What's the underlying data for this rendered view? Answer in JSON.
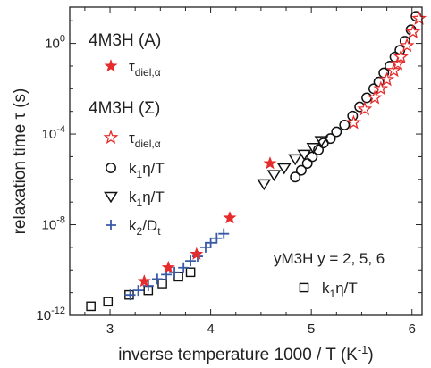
{
  "chart_data": {
    "type": "scatter",
    "xlabel": "inverse temperature 1000 / T (K",
    "xlabel_sup": "-1",
    "xlabel_close": ")",
    "ylabel": "relaxation time τ (s)",
    "log_y": true,
    "xlim": [
      2.6,
      6.1
    ],
    "ylim_log10": [
      -12,
      1.6
    ],
    "x_ticks": [
      3,
      4,
      5,
      6
    ],
    "x_tick_labels": [
      "3",
      "4",
      "5",
      "6"
    ],
    "y_ticks": [
      -12,
      -8,
      -4,
      0
    ],
    "y_tick_labels": [
      {
        "base": "10",
        "exp": "-12"
      },
      {
        "base": "10",
        "exp": "-8"
      },
      {
        "base": "10",
        "exp": "-4"
      },
      {
        "base": "10",
        "exp": "0"
      }
    ],
    "legend_groups": [
      {
        "heading": "4M3H (A)",
        "entries": [
          {
            "marker": "filled-star",
            "color": "#e52b2b",
            "label": "τ",
            "sub": "diel,α"
          }
        ]
      },
      {
        "heading": "4M3H (Σ)",
        "entries": [
          {
            "marker": "open-star",
            "color": "#e52b2b",
            "label": "τ",
            "sub": "diel,α"
          },
          {
            "marker": "circle",
            "color": "#111111",
            "label": "k",
            "sub": "1",
            "tail": "η/T"
          },
          {
            "marker": "triangle-down",
            "color": "#111111",
            "label": "k",
            "sub": "1",
            "tail": "η/T"
          },
          {
            "marker": "plus",
            "color": "#3a5aa8",
            "label": "k",
            "sub": "2",
            "tail": "/D",
            "sub2": "t"
          }
        ]
      },
      {
        "heading": "yM3H  y = 2, 5, 6",
        "entries": [
          {
            "marker": "square",
            "color": "#111111",
            "label": "k",
            "sub": "1",
            "tail": "η/T"
          }
        ]
      }
    ],
    "series": [
      {
        "name": "4M3H (A) τdiel,α",
        "marker": "filled-star",
        "color": "#e52b2b",
        "x": [
          3.34,
          3.58,
          3.86,
          4.19,
          4.59
        ],
        "log10_y": [
          -10.5,
          -9.9,
          -9.3,
          -7.7,
          -5.3
        ]
      },
      {
        "name": "4M3H (Σ) τdiel,α",
        "marker": "open-star",
        "color": "#e52b2b",
        "x": [
          5.42,
          5.53,
          5.63,
          5.69,
          5.75,
          5.82,
          5.86,
          5.89,
          5.95,
          6.01,
          6.07
        ],
        "log10_y": [
          -3.5,
          -2.9,
          -2.4,
          -2.0,
          -1.6,
          -1.2,
          -0.9,
          -0.6,
          -0.1,
          0.5,
          1.1
        ]
      },
      {
        "name": "4M3H (Σ) k1η/T circles",
        "marker": "circle",
        "color": "#111111",
        "x": [
          4.84,
          4.9,
          4.96,
          5.01,
          5.07,
          5.12,
          5.19,
          5.25,
          5.33,
          5.41,
          5.48,
          5.55,
          5.62,
          5.67,
          5.72,
          5.78,
          5.83,
          5.88,
          5.93,
          5.99,
          6.04
        ],
        "log10_y": [
          -5.9,
          -5.6,
          -5.3,
          -5.0,
          -4.7,
          -4.4,
          -4.2,
          -3.9,
          -3.6,
          -3.2,
          -2.8,
          -2.4,
          -2.0,
          -1.7,
          -1.3,
          -1.0,
          -0.6,
          -0.3,
          0.1,
          0.6,
          1.2
        ]
      },
      {
        "name": "4M3H (Σ) k1η/T triangles",
        "marker": "triangle-down",
        "color": "#111111",
        "x": [
          4.53,
          4.63,
          4.73,
          4.84,
          4.93,
          5.02,
          5.1
        ],
        "log10_y": [
          -6.2,
          -5.8,
          -5.5,
          -5.1,
          -4.9,
          -4.6,
          -4.3
        ]
      },
      {
        "name": "4M3H (Σ) k2/Dt",
        "marker": "plus",
        "color": "#3a5aa8",
        "x": [
          3.2,
          3.28,
          3.38,
          3.47,
          3.56,
          3.64,
          3.73,
          3.8,
          3.87,
          3.95,
          4.0,
          4.06,
          4.13
        ],
        "log10_y": [
          -11.1,
          -10.9,
          -10.7,
          -10.4,
          -10.2,
          -10.1,
          -9.9,
          -9.6,
          -9.4,
          -9.0,
          -8.8,
          -8.6,
          -8.4
        ]
      },
      {
        "name": "yM3H k1η/T",
        "marker": "square",
        "color": "#111111",
        "x": [
          2.81,
          2.98,
          3.19,
          3.38,
          3.52,
          3.68,
          3.8
        ],
        "log10_y": [
          -11.6,
          -11.4,
          -11.1,
          -10.9,
          -10.6,
          -10.3,
          -10.1
        ]
      }
    ]
  }
}
